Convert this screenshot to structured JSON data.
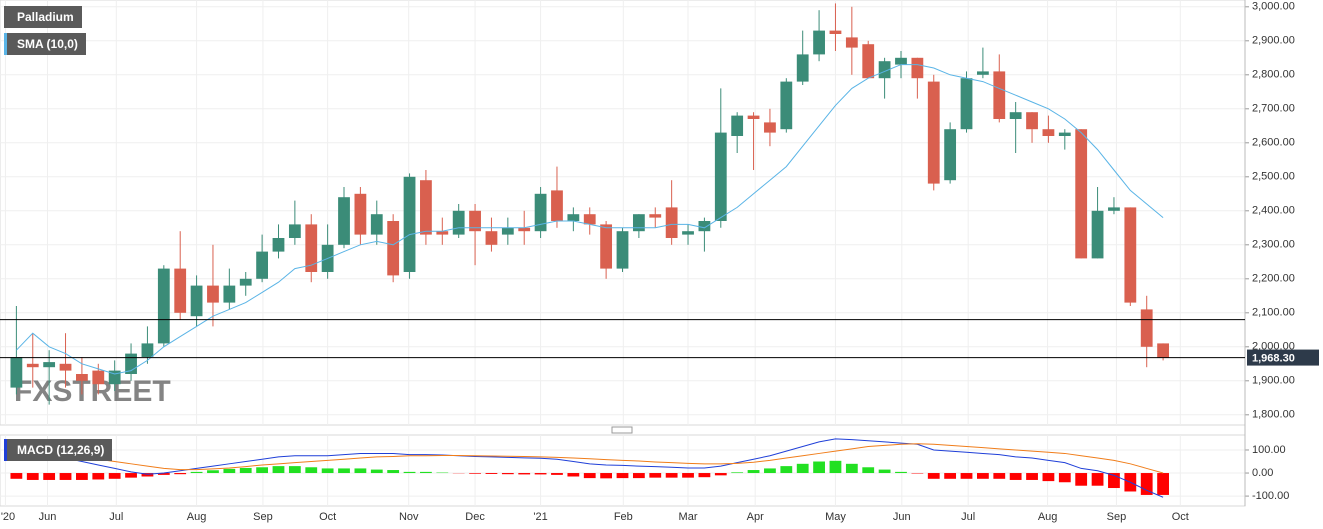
{
  "chart_data": [
    {
      "type": "candlestick",
      "watermark": "FXSTREET",
      "x": [
        0,
        1,
        2,
        3,
        4,
        5,
        6,
        7,
        8,
        9,
        10,
        11,
        12,
        13,
        14,
        15,
        16,
        17,
        18,
        19,
        20,
        21,
        22,
        23,
        24,
        25,
        26,
        27,
        28,
        29,
        30,
        31,
        32,
        33,
        34,
        35,
        36,
        37,
        38,
        39,
        40,
        41,
        42,
        43,
        44,
        45,
        46,
        47,
        48,
        49,
        50,
        51,
        52,
        53,
        54,
        55,
        56,
        57,
        58,
        59,
        60,
        61,
        62,
        63,
        64,
        65,
        66,
        67,
        68,
        69,
        70
      ],
      "xlim": [
        -1,
        75
      ],
      "xticks": [
        {
          "value": -0.67,
          "label": "'20"
        },
        {
          "value": 1.9,
          "label": "Jun"
        },
        {
          "value": 6.1,
          "label": "Jul"
        },
        {
          "value": 11,
          "label": "Aug"
        },
        {
          "value": 15.05,
          "label": "Sep"
        },
        {
          "value": 19,
          "label": "Oct"
        },
        {
          "value": 23.95,
          "label": "Nov"
        },
        {
          "value": 28,
          "label": "Dec"
        },
        {
          "value": 32,
          "label": "'21"
        },
        {
          "value": 37.05,
          "label": "Feb"
        },
        {
          "value": 41,
          "label": "Mar"
        },
        {
          "value": 45.1,
          "label": "Apr"
        },
        {
          "value": 50,
          "label": "May"
        },
        {
          "value": 54.05,
          "label": "Jun"
        },
        {
          "value": 58.1,
          "label": "Jul"
        },
        {
          "value": 62.95,
          "label": "Aug"
        },
        {
          "value": 67.15,
          "label": "Sep"
        },
        {
          "value": 71.05,
          "label": "Oct"
        }
      ],
      "ylim": [
        1770,
        3020
      ],
      "yticks": [
        {
          "value": 1800,
          "label": "1,800.00"
        },
        {
          "value": 1900,
          "label": "1,900.00"
        },
        {
          "value": 2000,
          "label": "2,000.00"
        },
        {
          "value": 2100,
          "label": "2,100.00"
        },
        {
          "value": 2200,
          "label": "2,200.00"
        },
        {
          "value": 2300,
          "label": "2,300.00"
        },
        {
          "value": 2400,
          "label": "2,400.00"
        },
        {
          "value": 2500,
          "label": "2,500.00"
        },
        {
          "value": 2600,
          "label": "2,600.00"
        },
        {
          "value": 2700,
          "label": "2,700.00"
        },
        {
          "value": 2800,
          "label": "2,800.00"
        },
        {
          "value": 2900,
          "label": "2,900.00"
        },
        {
          "value": 3000,
          "label": "3,000.00"
        }
      ],
      "grid": true,
      "hlines": [
        2080
      ],
      "last_price": {
        "value": 1968.3,
        "label": "1,968.30"
      },
      "series": [
        {
          "name": "Palladium",
          "type": "candlestick",
          "up_color": "#3b8c78",
          "down_color": "#d9604f",
          "open": [
            1880,
            1950,
            1940,
            1950,
            1920,
            1930,
            1890,
            1920,
            1970,
            2010,
            2230,
            2090,
            2180,
            2130,
            2180,
            2200,
            2280,
            2320,
            2360,
            2220,
            2300,
            2450,
            2330,
            2370,
            2220,
            2490,
            2340,
            2330,
            2400,
            2340,
            2330,
            2350,
            2340,
            2460,
            2370,
            2390,
            2360,
            2230,
            2340,
            2390,
            2410,
            2330,
            2340,
            2370,
            2620,
            2680,
            2660,
            2640,
            2780,
            2860,
            2930,
            2910,
            2890,
            2790,
            2830,
            2850,
            2780,
            2490,
            2640,
            2800,
            2810,
            2670,
            2690,
            2640,
            2620,
            2640,
            2260,
            2400,
            2410,
            2110,
            2010
          ],
          "high": [
            2120,
            2040,
            1990,
            2040,
            1970,
            1950,
            1960,
            2010,
            2060,
            2240,
            2340,
            2210,
            2300,
            2230,
            2220,
            2330,
            2360,
            2430,
            2390,
            2360,
            2470,
            2470,
            2430,
            2390,
            2510,
            2520,
            2380,
            2420,
            2420,
            2380,
            2380,
            2400,
            2470,
            2530,
            2410,
            2410,
            2370,
            2350,
            2390,
            2410,
            2490,
            2360,
            2380,
            2760,
            2690,
            2690,
            2700,
            2790,
            2930,
            2990,
            3010,
            3000,
            2900,
            2850,
            2870,
            2850,
            2800,
            2660,
            2810,
            2880,
            2860,
            2720,
            2690,
            2680,
            2640,
            2640,
            2470,
            2440,
            2410,
            2150,
            2010
          ],
          "low": [
            1860,
            1880,
            1830,
            1880,
            1860,
            1860,
            1870,
            1900,
            1950,
            2000,
            2080,
            2060,
            2060,
            2110,
            2150,
            2190,
            2260,
            2300,
            2190,
            2200,
            2290,
            2300,
            2300,
            2190,
            2200,
            2300,
            2300,
            2320,
            2240,
            2280,
            2300,
            2300,
            2320,
            2350,
            2340,
            2330,
            2200,
            2220,
            2320,
            2350,
            2300,
            2300,
            2280,
            2350,
            2570,
            2520,
            2590,
            2630,
            2770,
            2840,
            2870,
            2800,
            2790,
            2730,
            2790,
            2730,
            2460,
            2480,
            2630,
            2790,
            2660,
            2570,
            2600,
            2600,
            2580,
            2260,
            2260,
            2390,
            2120,
            1940,
            1960
          ],
          "close": [
            1970,
            1940,
            1955,
            1930,
            1900,
            1890,
            1930,
            1980,
            2010,
            2230,
            2100,
            2180,
            2130,
            2180,
            2200,
            2280,
            2320,
            2360,
            2220,
            2300,
            2440,
            2330,
            2390,
            2210,
            2500,
            2330,
            2330,
            2400,
            2340,
            2300,
            2350,
            2340,
            2450,
            2370,
            2390,
            2360,
            2230,
            2340,
            2390,
            2380,
            2320,
            2340,
            2370,
            2630,
            2680,
            2670,
            2630,
            2780,
            2860,
            2930,
            2920,
            2880,
            2790,
            2840,
            2850,
            2790,
            2480,
            2640,
            2790,
            2810,
            2670,
            2690,
            2640,
            2620,
            2630,
            2260,
            2400,
            2410,
            2130,
            2000,
            1968.3
          ]
        },
        {
          "name": "SMA (10,0)",
          "type": "line",
          "color": "#5ab4e6",
          "values": [
            1990,
            2040,
            2000,
            1980,
            1950,
            1935,
            1920,
            1930,
            1960,
            2000,
            2030,
            2060,
            2090,
            2110,
            2130,
            2160,
            2190,
            2230,
            2240,
            2260,
            2280,
            2300,
            2310,
            2300,
            2330,
            2340,
            2340,
            2350,
            2350,
            2350,
            2350,
            2350,
            2360,
            2370,
            2370,
            2360,
            2350,
            2350,
            2350,
            2350,
            2360,
            2360,
            2350,
            2380,
            2410,
            2450,
            2490,
            2530,
            2590,
            2650,
            2710,
            2760,
            2790,
            2810,
            2830,
            2830,
            2820,
            2800,
            2790,
            2780,
            2760,
            2740,
            2720,
            2700,
            2670,
            2630,
            2580,
            2520,
            2460,
            2420,
            2380
          ]
        }
      ]
    },
    {
      "type": "macd",
      "ylim": [
        -143,
        165
      ],
      "yticks": [
        {
          "value": -100,
          "label": "-100.00"
        },
        {
          "value": 0,
          "label": "0.00"
        },
        {
          "value": 100,
          "label": "100.00"
        }
      ],
      "grid": true,
      "series": [
        {
          "type": "histogram",
          "up_color": "#22e022",
          "down_color": "#ff0000",
          "values": [
            -25,
            -30,
            -30,
            -30,
            -30,
            -28,
            -25,
            -20,
            -15,
            -8,
            -5,
            5,
            12,
            18,
            22,
            25,
            30,
            30,
            25,
            20,
            20,
            20,
            15,
            13,
            5,
            5,
            2,
            -1,
            -3,
            -4,
            -5,
            -6,
            -6,
            -8,
            -15,
            -22,
            -23,
            -22,
            -22,
            -20,
            -20,
            -20,
            -18,
            -10,
            3,
            13,
            20,
            30,
            40,
            50,
            53,
            40,
            25,
            15,
            5,
            -2,
            -25,
            -25,
            -25,
            -25,
            -25,
            -30,
            -30,
            -35,
            -40,
            -55,
            -55,
            -65,
            -80,
            -95,
            -95
          ]
        },
        {
          "name": "MACD (12,26,9)",
          "type": "line",
          "color": "#1f3fd8",
          "values": [
            110,
            95,
            80,
            65,
            50,
            35,
            20,
            5,
            -5,
            0,
            10,
            20,
            30,
            40,
            50,
            60,
            70,
            75,
            75,
            75,
            80,
            85,
            85,
            85,
            80,
            80,
            78,
            75,
            72,
            70,
            68,
            66,
            64,
            60,
            50,
            40,
            35,
            33,
            30,
            28,
            25,
            22,
            22,
            30,
            45,
            60,
            75,
            95,
            115,
            135,
            148,
            145,
            140,
            135,
            130,
            125,
            100,
            95,
            90,
            85,
            80,
            70,
            65,
            55,
            45,
            20,
            10,
            -10,
            -40,
            -75,
            -105
          ]
        },
        {
          "type": "line",
          "color": "#f07d1a",
          "values": [
            105,
            100,
            90,
            80,
            70,
            60,
            50,
            40,
            30,
            20,
            15,
            15,
            18,
            22,
            28,
            35,
            40,
            45,
            50,
            55,
            60,
            65,
            70,
            72,
            75,
            75,
            76,
            76,
            75,
            74,
            73,
            72,
            70,
            68,
            65,
            62,
            58,
            55,
            52,
            48,
            45,
            42,
            40,
            40,
            42,
            47,
            55,
            65,
            75,
            85,
            95,
            105,
            115,
            120,
            125,
            127,
            125,
            120,
            115,
            110,
            105,
            100,
            95,
            90,
            85,
            75,
            65,
            55,
            40,
            20,
            0
          ]
        }
      ]
    }
  ]
}
